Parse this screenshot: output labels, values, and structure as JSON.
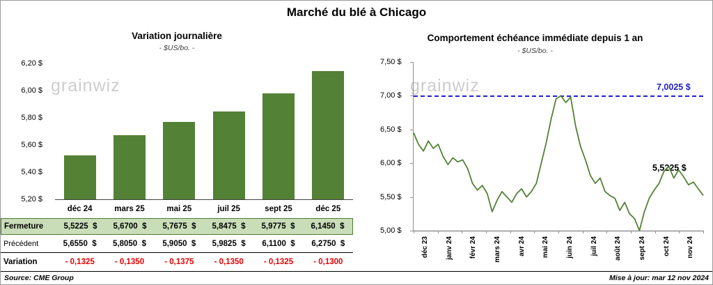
{
  "page": {
    "title": "Marché du blé à Chicago",
    "source": "Source: CME Group",
    "updated": "Mise à jour: mar 12 nov 2024",
    "watermark": "grainwiz"
  },
  "chart_data": [
    {
      "type": "bar",
      "title": "Variation  journalière",
      "subtitle": "- $US/bo. -",
      "categories": [
        "déc 24",
        "mars 25",
        "mai 25",
        "juil 25",
        "sept 25",
        "déc 25"
      ],
      "values": [
        5.5225,
        5.67,
        5.7675,
        5.8475,
        5.9775,
        6.145
      ],
      "ylim": [
        5.2,
        6.2
      ],
      "yticks": [
        "6,20 $",
        "6,00 $",
        "5,80 $",
        "5,60 $",
        "5,40 $",
        "5,20 $"
      ],
      "bar_color": "#538135",
      "legend": "none",
      "grid": "off"
    },
    {
      "type": "line",
      "title": "Comportement  échéance  immédiate  depuis 1 an",
      "subtitle": "- $US/bo. -",
      "x_labels": [
        "déc 23",
        "janv 24",
        "févr 24",
        "mars 24",
        "avr 24",
        "mai 24",
        "juin 24",
        "juil 24",
        "août 24",
        "sept 24",
        "oct 24",
        "nov 24"
      ],
      "values": [
        6.45,
        6.28,
        6.18,
        6.33,
        6.22,
        6.28,
        6.1,
        5.98,
        6.08,
        6.02,
        6.05,
        5.92,
        5.7,
        5.6,
        5.67,
        5.55,
        5.28,
        5.45,
        5.58,
        5.5,
        5.42,
        5.55,
        5.62,
        5.5,
        5.58,
        5.7,
        6.0,
        6.3,
        6.65,
        6.95,
        7.0,
        6.9,
        6.98,
        6.55,
        6.25,
        6.05,
        5.82,
        5.7,
        5.78,
        5.58,
        5.52,
        5.48,
        5.3,
        5.42,
        5.25,
        5.18,
        5.0,
        5.28,
        5.48,
        5.6,
        5.7,
        5.88,
        5.95,
        5.78,
        5.9,
        5.8,
        5.68,
        5.72,
        5.62,
        5.5225
      ],
      "ylim": [
        5.0,
        7.5
      ],
      "yticks": [
        "7,50 $",
        "7,00 $",
        "6,50 $",
        "6,00 $",
        "5,50 $",
        "5,00 $"
      ],
      "line_color": "#538135",
      "ref_line": {
        "value": 7.0025,
        "label": "7,0025 $",
        "color": "#2020cc"
      },
      "last_label": "5,5225 $",
      "legend": "none",
      "grid": "off"
    }
  ],
  "table": {
    "rows": [
      {
        "label": "Fermeture",
        "cells": [
          "5,5225  $",
          "5,6700  $",
          "5,7675  $",
          "5,8475  $",
          "5,9775  $",
          "6,1450  $"
        ]
      },
      {
        "label": "Précédent",
        "cells": [
          "5,6550  $",
          "5,8050  $",
          "5,9050  $",
          "5,9825  $",
          "6,1100  $",
          "6,2750  $"
        ]
      },
      {
        "label": "Variation",
        "cells": [
          "- 0,1325",
          "- 0,1350",
          "- 0,1375",
          "- 0,1350",
          "- 0,1325",
          "- 0,1300"
        ]
      }
    ]
  }
}
